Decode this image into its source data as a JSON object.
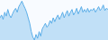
{
  "chart_data": {
    "type": "area",
    "values": [
      55,
      60,
      52,
      65,
      58,
      70,
      60,
      55,
      62,
      68,
      72,
      65,
      75,
      80,
      85,
      78,
      72,
      65,
      55,
      45,
      30,
      20,
      15,
      25,
      18,
      30,
      22,
      35,
      40,
      45,
      38,
      42,
      50,
      45,
      55,
      48,
      55,
      60,
      52,
      58,
      65,
      55,
      62,
      68,
      58,
      65,
      70,
      60,
      65,
      72,
      62,
      68,
      75,
      65,
      70,
      65,
      72,
      65,
      70,
      68,
      72,
      65,
      70,
      75,
      68,
      72,
      78,
      68,
      72,
      70
    ],
    "color": "#5baee8",
    "ylim": [
      15,
      87
    ],
    "tick_labels": false
  }
}
